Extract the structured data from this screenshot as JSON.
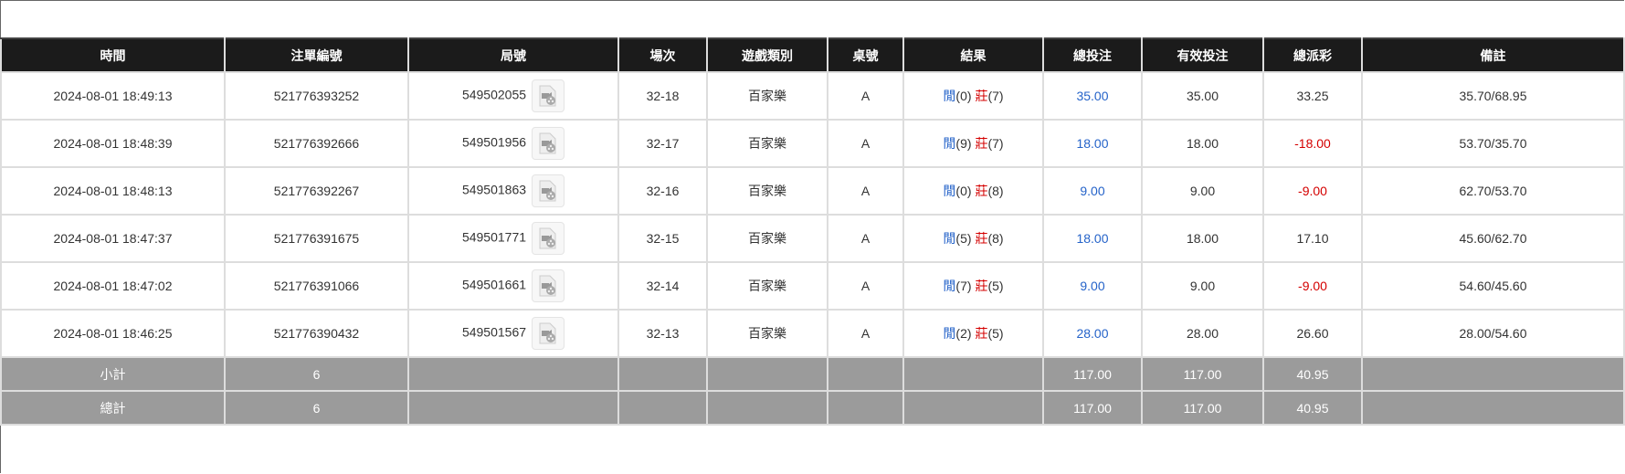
{
  "columns": [
    "時間",
    "注單編號",
    "局號",
    "場次",
    "遊戲類別",
    "桌號",
    "結果",
    "總投注",
    "有效投注",
    "總派彩",
    "備註"
  ],
  "rows": [
    {
      "time": "2024-08-01 18:49:13",
      "bet_id": "521776393252",
      "round": "549502055",
      "session": "32-18",
      "game": "百家樂",
      "table": "A",
      "player": "閒",
      "player_score": "(0)",
      "banker": "莊",
      "banker_score": "(7)",
      "total_bet": "35.00",
      "valid_bet": "35.00",
      "payout": "33.25",
      "payout_negative": false,
      "note": "35.70/68.95"
    },
    {
      "time": "2024-08-01 18:48:39",
      "bet_id": "521776392666",
      "round": "549501956",
      "session": "32-17",
      "game": "百家樂",
      "table": "A",
      "player": "閒",
      "player_score": "(9)",
      "banker": "莊",
      "banker_score": "(7)",
      "total_bet": "18.00",
      "valid_bet": "18.00",
      "payout": "-18.00",
      "payout_negative": true,
      "note": "53.70/35.70"
    },
    {
      "time": "2024-08-01 18:48:13",
      "bet_id": "521776392267",
      "round": "549501863",
      "session": "32-16",
      "game": "百家樂",
      "table": "A",
      "player": "閒",
      "player_score": "(0)",
      "banker": "莊",
      "banker_score": "(8)",
      "total_bet": "9.00",
      "valid_bet": "9.00",
      "payout": "-9.00",
      "payout_negative": true,
      "note": "62.70/53.70"
    },
    {
      "time": "2024-08-01 18:47:37",
      "bet_id": "521776391675",
      "round": "549501771",
      "session": "32-15",
      "game": "百家樂",
      "table": "A",
      "player": "閒",
      "player_score": "(5)",
      "banker": "莊",
      "banker_score": "(8)",
      "total_bet": "18.00",
      "valid_bet": "18.00",
      "payout": "17.10",
      "payout_negative": false,
      "note": "45.60/62.70"
    },
    {
      "time": "2024-08-01 18:47:02",
      "bet_id": "521776391066",
      "round": "549501661",
      "session": "32-14",
      "game": "百家樂",
      "table": "A",
      "player": "閒",
      "player_score": "(7)",
      "banker": "莊",
      "banker_score": "(5)",
      "total_bet": "9.00",
      "valid_bet": "9.00",
      "payout": "-9.00",
      "payout_negative": true,
      "note": "54.60/45.60"
    },
    {
      "time": "2024-08-01 18:46:25",
      "bet_id": "521776390432",
      "round": "549501567",
      "session": "32-13",
      "game": "百家樂",
      "table": "A",
      "player": "閒",
      "player_score": "(2)",
      "banker": "莊",
      "banker_score": "(5)",
      "total_bet": "28.00",
      "valid_bet": "28.00",
      "payout": "26.60",
      "payout_negative": false,
      "note": "28.00/54.60"
    }
  ],
  "summary": [
    {
      "label": "小計",
      "count": "6",
      "total_bet": "117.00",
      "valid_bet": "117.00",
      "payout": "40.95"
    },
    {
      "label": "總計",
      "count": "6",
      "total_bet": "117.00",
      "valid_bet": "117.00",
      "payout": "40.95"
    }
  ],
  "icons": {
    "round_detail": "video-file-icon"
  },
  "colors": {
    "header_bg": "#1b1b1b",
    "summary_bg": "#9b9b9b",
    "blue": "#2563c9",
    "red": "#d40000"
  }
}
